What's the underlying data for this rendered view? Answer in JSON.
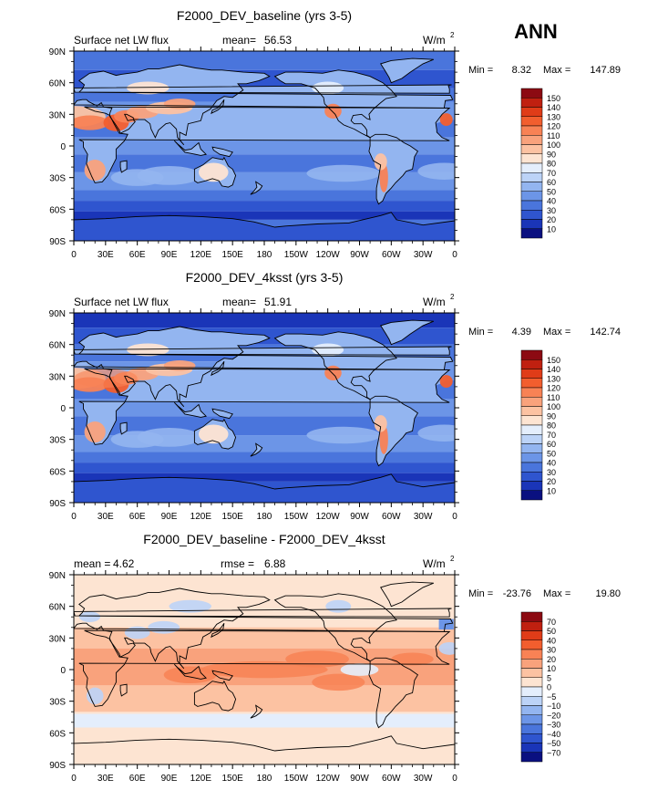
{
  "season": "ANN",
  "chart_data": [
    {
      "type": "heatmap",
      "title": "F2000_DEV_baseline (yrs 3-5)",
      "variable": "Surface net LW flux",
      "stat1_label": "mean=",
      "stat1_value": "56.53",
      "units": "W/m",
      "units_exp": "2",
      "min_label": "Min =",
      "min_value": "8.32",
      "max_label": "Max =",
      "max_value": "147.89",
      "x_ticks": [
        "0",
        "30E",
        "60E",
        "90E",
        "120E",
        "150E",
        "180",
        "150W",
        "120W",
        "90W",
        "60W",
        "30W",
        "0"
      ],
      "y_ticks": [
        "90N",
        "60N",
        "30N",
        "0",
        "30S",
        "60S",
        "90S"
      ],
      "xlim": [
        0,
        360
      ],
      "ylim": [
        -90,
        90
      ],
      "legend_levels": [
        "150",
        "140",
        "130",
        "120",
        "110",
        "100",
        "90",
        "80",
        "70",
        "60",
        "50",
        "40",
        "30",
        "20",
        "10"
      ],
      "legend_colors": [
        "#8c0a12",
        "#c02010",
        "#e03c18",
        "#f25e2e",
        "#f88255",
        "#f9a27c",
        "#fcc2a2",
        "#fde4d2",
        "#e4eefc",
        "#bcd3f7",
        "#93b5f0",
        "#6c95e7",
        "#4a75dc",
        "#2f55cf",
        "#1a35b8",
        "#0a1080"
      ]
    },
    {
      "type": "heatmap",
      "title": "F2000_DEV_4ksst (yrs 3-5)",
      "variable": "Surface net LW flux",
      "stat1_label": "mean=",
      "stat1_value": "51.91",
      "units": "W/m",
      "units_exp": "2",
      "min_label": "Min =",
      "min_value": "4.39",
      "max_label": "Max =",
      "max_value": "142.74",
      "x_ticks": [
        "0",
        "30E",
        "60E",
        "90E",
        "120E",
        "150E",
        "180",
        "150W",
        "120W",
        "90W",
        "60W",
        "30W",
        "0"
      ],
      "y_ticks": [
        "90N",
        "60N",
        "30N",
        "0",
        "30S",
        "60S",
        "90S"
      ],
      "xlim": [
        0,
        360
      ],
      "ylim": [
        -90,
        90
      ],
      "legend_levels": [
        "150",
        "140",
        "130",
        "120",
        "110",
        "100",
        "90",
        "80",
        "70",
        "60",
        "50",
        "40",
        "30",
        "20",
        "10"
      ],
      "legend_colors": [
        "#8c0a12",
        "#c02010",
        "#e03c18",
        "#f25e2e",
        "#f88255",
        "#f9a27c",
        "#fcc2a2",
        "#fde4d2",
        "#e4eefc",
        "#bcd3f7",
        "#93b5f0",
        "#6c95e7",
        "#4a75dc",
        "#2f55cf",
        "#1a35b8",
        "#0a1080"
      ]
    },
    {
      "type": "heatmap",
      "title": "F2000_DEV_baseline - F2000_DEV_4ksst",
      "variable": "",
      "stat1_label": "mean =",
      "stat1_value": "4.62",
      "stat2_label": "rmse =",
      "stat2_value": "6.88",
      "units": "W/m",
      "units_exp": "2",
      "min_label": "Min =",
      "min_value": "-23.76",
      "max_label": "Max =",
      "max_value": "19.80",
      "x_ticks": [
        "0",
        "30E",
        "60E",
        "90E",
        "120E",
        "150E",
        "180",
        "150W",
        "120W",
        "90W",
        "60W",
        "30W",
        "0"
      ],
      "y_ticks": [
        "90N",
        "60N",
        "30N",
        "0",
        "30S",
        "60S",
        "90S"
      ],
      "xlim": [
        0,
        360
      ],
      "ylim": [
        -90,
        90
      ],
      "legend_levels": [
        "70",
        "50",
        "40",
        "30",
        "20",
        "10",
        "5",
        "0",
        "−5",
        "−10",
        "−20",
        "−30",
        "−40",
        "−50",
        "−70"
      ],
      "legend_colors": [
        "#8c0a12",
        "#c02010",
        "#e03c18",
        "#f25e2e",
        "#f88255",
        "#f9a27c",
        "#fcc2a2",
        "#fde4d2",
        "#e4eefc",
        "#bcd3f7",
        "#93b5f0",
        "#6c95e7",
        "#4a75dc",
        "#2f55cf",
        "#1a35b8",
        "#0a1080"
      ]
    }
  ]
}
